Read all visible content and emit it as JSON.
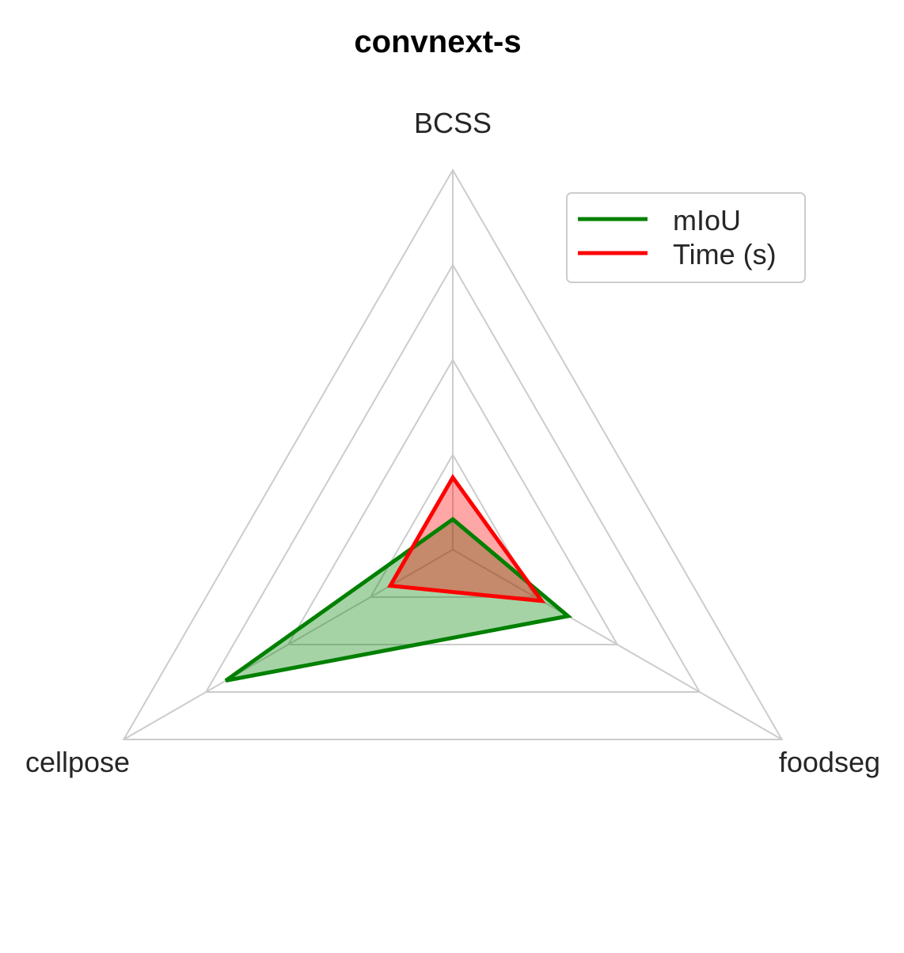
{
  "chart_data": {
    "type": "radar",
    "title": "convnext-s",
    "axes": [
      "BCSS",
      "foodseg",
      "cellpose"
    ],
    "rlim": [
      0,
      1
    ],
    "rings": [
      0.25,
      0.5,
      0.75,
      1.0
    ],
    "grid": true,
    "legend_position": "upper-right",
    "series": [
      {
        "name": "mIoU",
        "color": "#008000",
        "fill": "#008000",
        "values": [
          0.08,
          0.35,
          0.69
        ]
      },
      {
        "name": "Time (s)",
        "color": "#ff0000",
        "fill": "#ff0000",
        "values": [
          0.19,
          0.27,
          0.19
        ]
      }
    ]
  }
}
